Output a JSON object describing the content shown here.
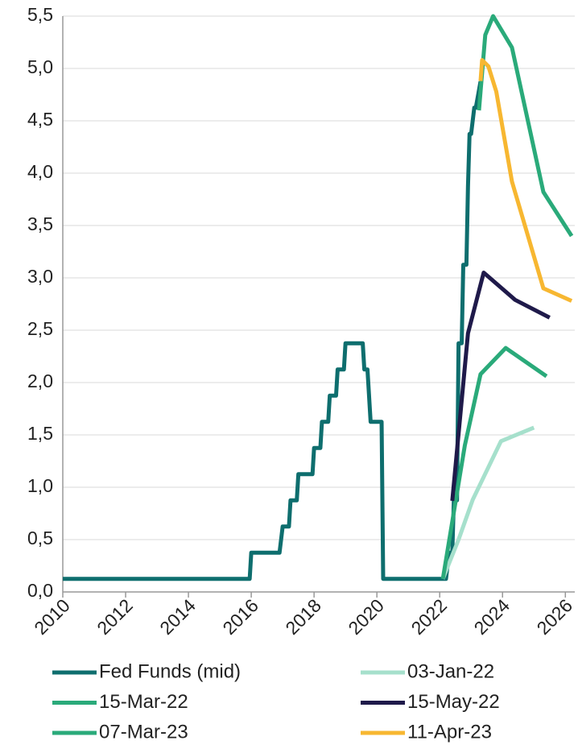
{
  "chart_data": {
    "type": "line",
    "xlim": [
      2010,
      2026.3
    ],
    "xticks": [
      2010,
      2012,
      2014,
      2016,
      2018,
      2020,
      2022,
      2024,
      2026
    ],
    "ylim": [
      0,
      5.5
    ],
    "yticks": [
      {
        "value": 0,
        "label": "0,0"
      },
      {
        "value": 0.5,
        "label": "0,5"
      },
      {
        "value": 1,
        "label": "1,0"
      },
      {
        "value": 1.5,
        "label": "1,5"
      },
      {
        "value": 2,
        "label": "2,0"
      },
      {
        "value": 2.5,
        "label": "2,5"
      },
      {
        "value": 3,
        "label": "3,0"
      },
      {
        "value": 3.5,
        "label": "3,5"
      },
      {
        "value": 4,
        "label": "4,0"
      },
      {
        "value": 4.5,
        "label": "4,5"
      },
      {
        "value": 5,
        "label": "5,0"
      },
      {
        "value": 5.5,
        "label": "5,5"
      }
    ],
    "grid": true,
    "series": [
      {
        "name": "Fed Funds (mid)",
        "color": "#0e6e6e",
        "x": [
          2010,
          2015.95,
          2016.0,
          2016.9,
          2017.0,
          2017.2,
          2017.25,
          2017.45,
          2017.5,
          2017.95,
          2018.0,
          2018.2,
          2018.25,
          2018.45,
          2018.5,
          2018.7,
          2018.75,
          2018.95,
          2019.0,
          2019.55,
          2019.6,
          2019.7,
          2019.8,
          2020.15,
          2020.2,
          2022.2,
          2022.3,
          2022.4,
          2022.45,
          2022.55,
          2022.6,
          2022.7,
          2022.75,
          2022.85,
          2022.9,
          2022.95,
          2023.0,
          2023.1,
          2023.15,
          2023.3
        ],
        "values": [
          0.125,
          0.125,
          0.375,
          0.375,
          0.625,
          0.625,
          0.875,
          0.875,
          1.125,
          1.125,
          1.375,
          1.375,
          1.625,
          1.625,
          1.875,
          1.875,
          2.125,
          2.125,
          2.375,
          2.375,
          2.125,
          2.125,
          1.625,
          1.625,
          0.125,
          0.125,
          0.375,
          0.375,
          0.875,
          0.875,
          2.375,
          2.375,
          3.125,
          3.125,
          3.875,
          4.375,
          4.375,
          4.625,
          4.625,
          4.875
        ]
      },
      {
        "name": "03-Jan-22",
        "color": "#a6e0cc",
        "x": [
          2022.1,
          2022.6,
          2023.05,
          2023.95,
          2025.0
        ],
        "values": [
          0.125,
          0.5,
          0.88,
          1.44,
          1.57
        ]
      },
      {
        "name": "15-Mar-22",
        "color": "#2aaa7a",
        "x": [
          2022.1,
          2022.8,
          2023.3,
          2024.1,
          2025.4
        ],
        "values": [
          0.125,
          1.4,
          2.08,
          2.33,
          2.06
        ]
      },
      {
        "name": "15-May-22",
        "color": "#1f1a4a",
        "x": [
          2022.4,
          2022.9,
          2023.4,
          2024.4,
          2025.5
        ],
        "values": [
          0.87,
          2.47,
          3.05,
          2.79,
          2.62
        ]
      },
      {
        "name": "07-Mar-23",
        "color": "#2aaa7a",
        "x": [
          2023.25,
          2023.45,
          2023.7,
          2024.3,
          2025.3,
          2026.2
        ],
        "values": [
          4.6,
          5.32,
          5.5,
          5.2,
          3.82,
          3.4
        ]
      },
      {
        "name": "11-Apr-23",
        "color": "#f7b731",
        "x": [
          2023.3,
          2023.35,
          2023.55,
          2023.8,
          2024.3,
          2025.3,
          2026.2
        ],
        "values": [
          4.88,
          5.08,
          5.02,
          4.78,
          3.92,
          2.9,
          2.78
        ]
      }
    ]
  }
}
